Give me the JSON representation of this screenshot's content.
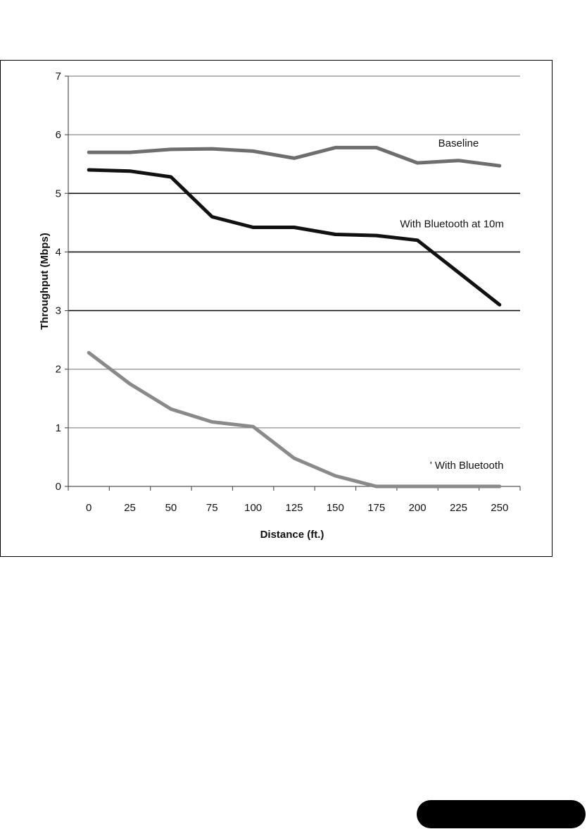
{
  "chart_data": {
    "type": "line",
    "title": "",
    "xlabel": "Distance (ft.)",
    "ylabel": "Throughput (Mbps)",
    "x": [
      0,
      25,
      50,
      75,
      100,
      125,
      150,
      175,
      200,
      225,
      250
    ],
    "xlim": [
      -12.5,
      262.5
    ],
    "ylim": [
      0,
      7
    ],
    "yticks": [
      0,
      1,
      2,
      3,
      4,
      5,
      6,
      7
    ],
    "grid": true,
    "series": [
      {
        "name": "Baseline",
        "color": "#6e6e6e",
        "values": [
          5.7,
          5.7,
          5.75,
          5.76,
          5.72,
          5.6,
          5.78,
          5.78,
          5.52,
          5.56,
          5.47
        ]
      },
      {
        "name": "With Bluetooth at 10m",
        "color": "#111111",
        "values": [
          5.4,
          5.38,
          5.28,
          4.6,
          4.42,
          4.42,
          4.3,
          4.28,
          4.2,
          3.65,
          3.1
        ]
      },
      {
        "name": "With Bluetooth",
        "color": "#8a8a8a",
        "values": [
          2.28,
          1.75,
          1.32,
          1.1,
          1.02,
          0.48,
          0.18,
          0.0,
          0.0,
          0.0,
          0.0
        ]
      }
    ],
    "labels": [
      {
        "series": "Baseline",
        "text": "Baseline",
        "at_x": 225,
        "at_y": 5.8
      },
      {
        "series": "With Bluetooth at 10m",
        "text": "With Bluetooth at 10m",
        "at_x": 221,
        "at_y": 4.42
      },
      {
        "series": "With Bluetooth",
        "text": "' With Bluetooth",
        "at_x": 230,
        "at_y": 0.3
      }
    ]
  }
}
